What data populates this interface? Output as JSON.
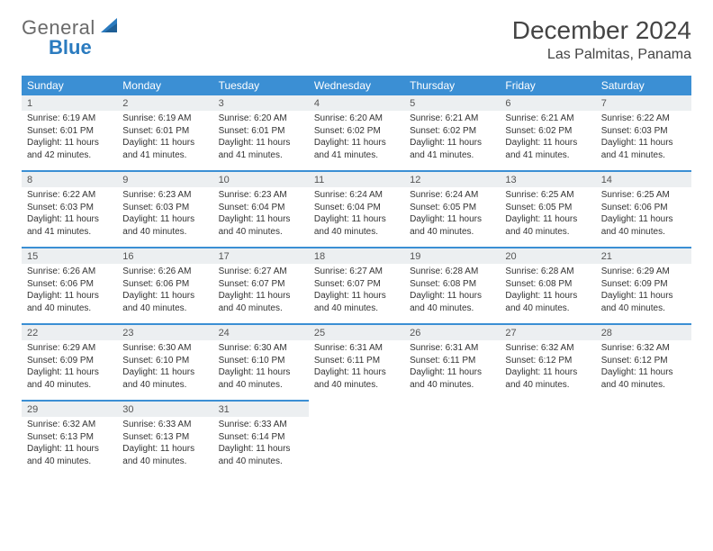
{
  "brand": {
    "general": "General",
    "blue": "Blue"
  },
  "title": "December 2024",
  "location": "Las Palmitas, Panama",
  "colors": {
    "header_bg": "#3b8fd4",
    "header_text": "#ffffff",
    "daynum_bg": "#eceff1",
    "row_divider": "#3b8fd4",
    "body_text": "#333333",
    "brand_gray": "#6a6a6a",
    "brand_blue": "#2b7bbf"
  },
  "typography": {
    "title_fontsize": 28,
    "location_fontsize": 16,
    "weekday_fontsize": 12,
    "daynum_fontsize": 11,
    "detail_fontsize": 10
  },
  "weekdays": [
    "Sunday",
    "Monday",
    "Tuesday",
    "Wednesday",
    "Thursday",
    "Friday",
    "Saturday"
  ],
  "weeks": [
    [
      {
        "n": "1",
        "sunrise": "Sunrise: 6:19 AM",
        "sunset": "Sunset: 6:01 PM",
        "day1": "Daylight: 11 hours",
        "day2": "and 42 minutes."
      },
      {
        "n": "2",
        "sunrise": "Sunrise: 6:19 AM",
        "sunset": "Sunset: 6:01 PM",
        "day1": "Daylight: 11 hours",
        "day2": "and 41 minutes."
      },
      {
        "n": "3",
        "sunrise": "Sunrise: 6:20 AM",
        "sunset": "Sunset: 6:01 PM",
        "day1": "Daylight: 11 hours",
        "day2": "and 41 minutes."
      },
      {
        "n": "4",
        "sunrise": "Sunrise: 6:20 AM",
        "sunset": "Sunset: 6:02 PM",
        "day1": "Daylight: 11 hours",
        "day2": "and 41 minutes."
      },
      {
        "n": "5",
        "sunrise": "Sunrise: 6:21 AM",
        "sunset": "Sunset: 6:02 PM",
        "day1": "Daylight: 11 hours",
        "day2": "and 41 minutes."
      },
      {
        "n": "6",
        "sunrise": "Sunrise: 6:21 AM",
        "sunset": "Sunset: 6:02 PM",
        "day1": "Daylight: 11 hours",
        "day2": "and 41 minutes."
      },
      {
        "n": "7",
        "sunrise": "Sunrise: 6:22 AM",
        "sunset": "Sunset: 6:03 PM",
        "day1": "Daylight: 11 hours",
        "day2": "and 41 minutes."
      }
    ],
    [
      {
        "n": "8",
        "sunrise": "Sunrise: 6:22 AM",
        "sunset": "Sunset: 6:03 PM",
        "day1": "Daylight: 11 hours",
        "day2": "and 41 minutes."
      },
      {
        "n": "9",
        "sunrise": "Sunrise: 6:23 AM",
        "sunset": "Sunset: 6:03 PM",
        "day1": "Daylight: 11 hours",
        "day2": "and 40 minutes."
      },
      {
        "n": "10",
        "sunrise": "Sunrise: 6:23 AM",
        "sunset": "Sunset: 6:04 PM",
        "day1": "Daylight: 11 hours",
        "day2": "and 40 minutes."
      },
      {
        "n": "11",
        "sunrise": "Sunrise: 6:24 AM",
        "sunset": "Sunset: 6:04 PM",
        "day1": "Daylight: 11 hours",
        "day2": "and 40 minutes."
      },
      {
        "n": "12",
        "sunrise": "Sunrise: 6:24 AM",
        "sunset": "Sunset: 6:05 PM",
        "day1": "Daylight: 11 hours",
        "day2": "and 40 minutes."
      },
      {
        "n": "13",
        "sunrise": "Sunrise: 6:25 AM",
        "sunset": "Sunset: 6:05 PM",
        "day1": "Daylight: 11 hours",
        "day2": "and 40 minutes."
      },
      {
        "n": "14",
        "sunrise": "Sunrise: 6:25 AM",
        "sunset": "Sunset: 6:06 PM",
        "day1": "Daylight: 11 hours",
        "day2": "and 40 minutes."
      }
    ],
    [
      {
        "n": "15",
        "sunrise": "Sunrise: 6:26 AM",
        "sunset": "Sunset: 6:06 PM",
        "day1": "Daylight: 11 hours",
        "day2": "and 40 minutes."
      },
      {
        "n": "16",
        "sunrise": "Sunrise: 6:26 AM",
        "sunset": "Sunset: 6:06 PM",
        "day1": "Daylight: 11 hours",
        "day2": "and 40 minutes."
      },
      {
        "n": "17",
        "sunrise": "Sunrise: 6:27 AM",
        "sunset": "Sunset: 6:07 PM",
        "day1": "Daylight: 11 hours",
        "day2": "and 40 minutes."
      },
      {
        "n": "18",
        "sunrise": "Sunrise: 6:27 AM",
        "sunset": "Sunset: 6:07 PM",
        "day1": "Daylight: 11 hours",
        "day2": "and 40 minutes."
      },
      {
        "n": "19",
        "sunrise": "Sunrise: 6:28 AM",
        "sunset": "Sunset: 6:08 PM",
        "day1": "Daylight: 11 hours",
        "day2": "and 40 minutes."
      },
      {
        "n": "20",
        "sunrise": "Sunrise: 6:28 AM",
        "sunset": "Sunset: 6:08 PM",
        "day1": "Daylight: 11 hours",
        "day2": "and 40 minutes."
      },
      {
        "n": "21",
        "sunrise": "Sunrise: 6:29 AM",
        "sunset": "Sunset: 6:09 PM",
        "day1": "Daylight: 11 hours",
        "day2": "and 40 minutes."
      }
    ],
    [
      {
        "n": "22",
        "sunrise": "Sunrise: 6:29 AM",
        "sunset": "Sunset: 6:09 PM",
        "day1": "Daylight: 11 hours",
        "day2": "and 40 minutes."
      },
      {
        "n": "23",
        "sunrise": "Sunrise: 6:30 AM",
        "sunset": "Sunset: 6:10 PM",
        "day1": "Daylight: 11 hours",
        "day2": "and 40 minutes."
      },
      {
        "n": "24",
        "sunrise": "Sunrise: 6:30 AM",
        "sunset": "Sunset: 6:10 PM",
        "day1": "Daylight: 11 hours",
        "day2": "and 40 minutes."
      },
      {
        "n": "25",
        "sunrise": "Sunrise: 6:31 AM",
        "sunset": "Sunset: 6:11 PM",
        "day1": "Daylight: 11 hours",
        "day2": "and 40 minutes."
      },
      {
        "n": "26",
        "sunrise": "Sunrise: 6:31 AM",
        "sunset": "Sunset: 6:11 PM",
        "day1": "Daylight: 11 hours",
        "day2": "and 40 minutes."
      },
      {
        "n": "27",
        "sunrise": "Sunrise: 6:32 AM",
        "sunset": "Sunset: 6:12 PM",
        "day1": "Daylight: 11 hours",
        "day2": "and 40 minutes."
      },
      {
        "n": "28",
        "sunrise": "Sunrise: 6:32 AM",
        "sunset": "Sunset: 6:12 PM",
        "day1": "Daylight: 11 hours",
        "day2": "and 40 minutes."
      }
    ],
    [
      {
        "n": "29",
        "sunrise": "Sunrise: 6:32 AM",
        "sunset": "Sunset: 6:13 PM",
        "day1": "Daylight: 11 hours",
        "day2": "and 40 minutes."
      },
      {
        "n": "30",
        "sunrise": "Sunrise: 6:33 AM",
        "sunset": "Sunset: 6:13 PM",
        "day1": "Daylight: 11 hours",
        "day2": "and 40 minutes."
      },
      {
        "n": "31",
        "sunrise": "Sunrise: 6:33 AM",
        "sunset": "Sunset: 6:14 PM",
        "day1": "Daylight: 11 hours",
        "day2": "and 40 minutes."
      },
      null,
      null,
      null,
      null
    ]
  ]
}
